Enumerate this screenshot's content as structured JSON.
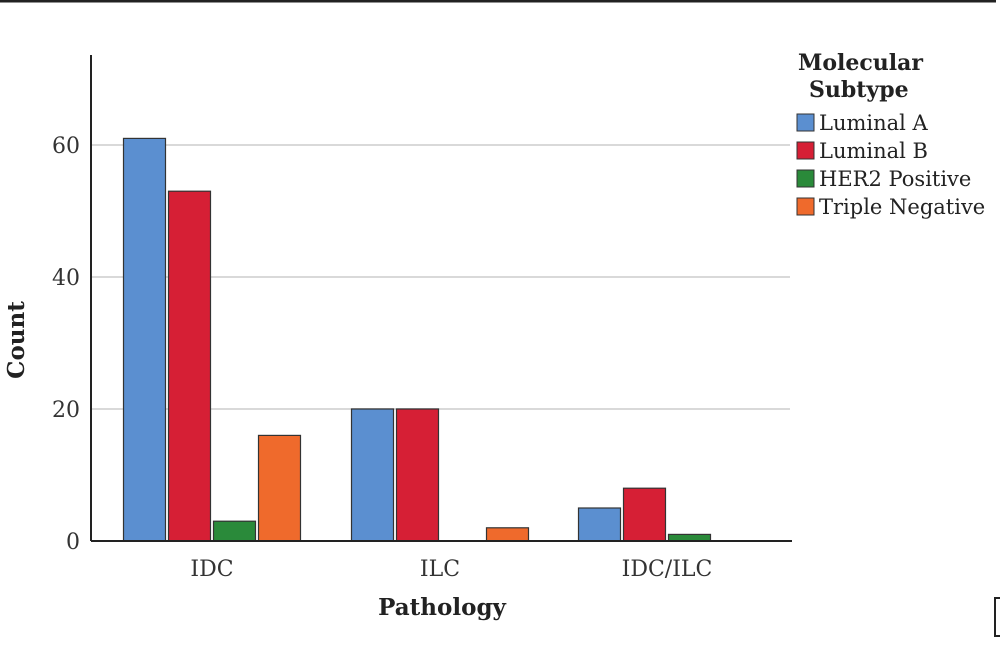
{
  "chart_data": {
    "type": "bar",
    "title": "",
    "xlabel": "Pathology",
    "ylabel": "Count",
    "categories": [
      "IDC",
      "ILC",
      "IDC/ILC"
    ],
    "yticks": [
      "0",
      "20",
      "40",
      "60"
    ],
    "ylim": [
      0,
      72
    ],
    "grid": true,
    "legend_position": "right",
    "legend_title_lines": [
      "Molecular",
      "Subtype"
    ],
    "series": [
      {
        "name": "Luminal A",
        "color": "#5b8fd0",
        "values": [
          61,
          20,
          5
        ]
      },
      {
        "name": "Luminal B",
        "color": "#d61f35",
        "values": [
          53,
          20,
          8
        ]
      },
      {
        "name": "HER2 Positive",
        "color": "#2a8a3a",
        "values": [
          3,
          0,
          1
        ]
      },
      {
        "name": "Triple Negative",
        "color": "#ef6a2c",
        "values": [
          16,
          2,
          0
        ]
      }
    ]
  }
}
